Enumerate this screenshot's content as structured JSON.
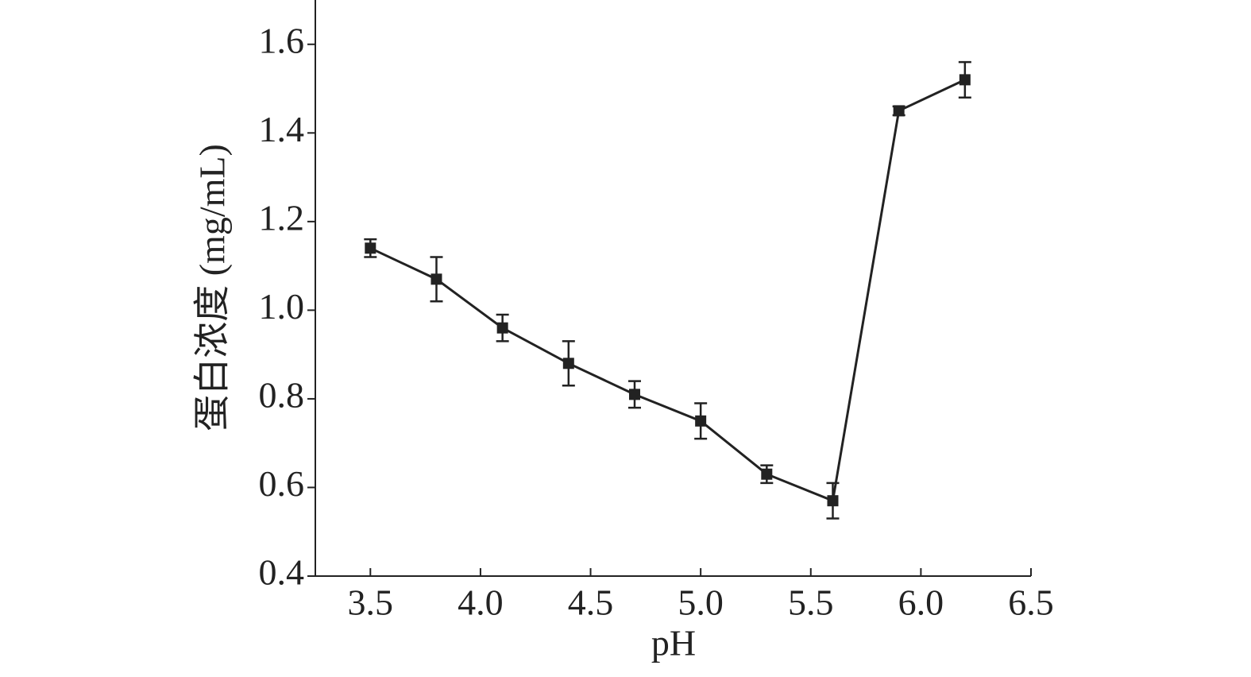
{
  "chart_data": {
    "type": "line",
    "xlabel": "pH",
    "ylabel": "蛋白浓度 (mg/mL)",
    "x": [
      3.5,
      3.8,
      4.1,
      4.4,
      4.7,
      5.0,
      5.3,
      5.6,
      5.9,
      6.2
    ],
    "series": [
      {
        "color": "#222222",
        "values": [
          1.14,
          1.07,
          0.96,
          0.88,
          0.81,
          0.75,
          0.63,
          0.57,
          1.45,
          1.52
        ],
        "errors": [
          0.02,
          0.05,
          0.03,
          0.05,
          0.03,
          0.04,
          0.02,
          0.04,
          0.01,
          0.04
        ]
      }
    ],
    "xlim": [
      3.25,
      6.5
    ],
    "xticks": [
      3.5,
      {
        "value": 4.0,
        "label": "4.0"
      },
      4.5,
      {
        "value": 5.0,
        "label": "5.0"
      },
      5.5,
      {
        "value": 6.0,
        "label": "6.0"
      },
      6.5
    ],
    "ylim": [
      0.4,
      1.7
    ],
    "yticks": [
      0.4,
      0.6,
      0.8,
      {
        "value": 1.0,
        "label": "1.0"
      },
      1.2,
      1.4,
      1.6
    ],
    "grid": false
  }
}
